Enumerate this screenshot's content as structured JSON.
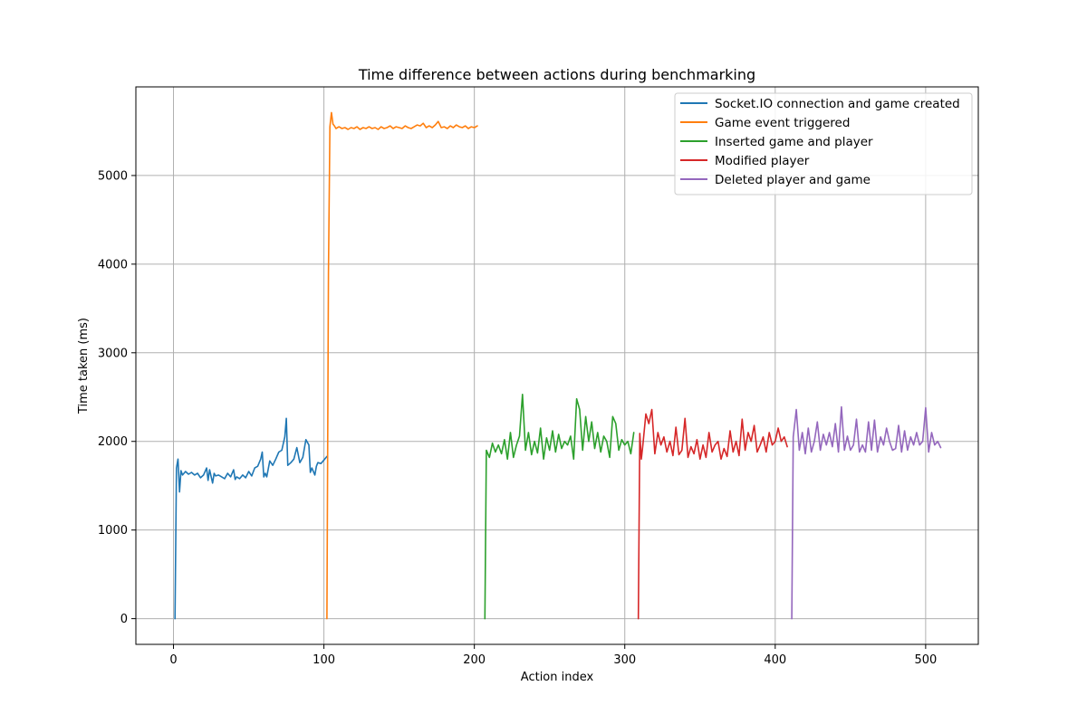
{
  "chart_data": {
    "type": "line",
    "title": "Time difference between actions during benchmarking",
    "xlabel": "Action index",
    "ylabel": "Time taken (ms)",
    "xlim": [
      -25,
      535
    ],
    "ylim": [
      -290,
      6000
    ],
    "xticks": [
      0,
      100,
      200,
      300,
      400,
      500
    ],
    "yticks": [
      0,
      1000,
      2000,
      3000,
      4000,
      5000
    ],
    "grid": true,
    "legend_position": "top-right",
    "series": [
      {
        "name": "Socket.IO connection and game created",
        "color": "#1f77b4",
        "x": [
          1,
          2,
          3,
          4,
          5,
          6,
          8,
          10,
          12,
          14,
          16,
          18,
          20,
          22,
          23,
          24,
          26,
          27,
          28,
          30,
          32,
          34,
          36,
          38,
          40,
          41,
          42,
          44,
          46,
          48,
          50,
          52,
          54,
          56,
          58,
          59,
          60,
          61,
          62,
          64,
          66,
          68,
          70,
          72,
          74,
          75,
          76,
          78,
          80,
          82,
          84,
          86,
          88,
          90,
          91,
          92,
          94,
          95,
          96,
          98,
          100,
          102
        ],
        "y": [
          0,
          1700,
          1800,
          1430,
          1670,
          1620,
          1660,
          1630,
          1650,
          1620,
          1640,
          1590,
          1620,
          1700,
          1560,
          1680,
          1530,
          1640,
          1610,
          1620,
          1600,
          1580,
          1640,
          1600,
          1680,
          1570,
          1600,
          1580,
          1620,
          1590,
          1660,
          1610,
          1700,
          1720,
          1800,
          1880,
          1600,
          1640,
          1600,
          1780,
          1730,
          1800,
          1880,
          1900,
          2050,
          2260,
          1730,
          1760,
          1800,
          1930,
          1760,
          1820,
          2020,
          1960,
          1650,
          1700,
          1620,
          1720,
          1760,
          1750,
          1790,
          1830
        ]
      },
      {
        "name": "Game event triggered",
        "color": "#ff7f0e",
        "x": [
          102,
          103,
          104,
          105,
          106,
          107,
          108,
          110,
          112,
          114,
          116,
          118,
          120,
          122,
          124,
          126,
          128,
          130,
          132,
          134,
          136,
          138,
          140,
          142,
          144,
          146,
          148,
          150,
          152,
          154,
          156,
          158,
          160,
          162,
          164,
          166,
          168,
          170,
          172,
          174,
          176,
          178,
          180,
          182,
          184,
          186,
          188,
          190,
          192,
          194,
          196,
          198,
          200,
          202
        ],
        "y": [
          0,
          3900,
          5550,
          5710,
          5580,
          5560,
          5530,
          5550,
          5530,
          5540,
          5520,
          5540,
          5530,
          5550,
          5520,
          5540,
          5530,
          5550,
          5530,
          5540,
          5520,
          5550,
          5530,
          5540,
          5560,
          5530,
          5550,
          5540,
          5530,
          5560,
          5540,
          5530,
          5550,
          5570,
          5560,
          5590,
          5540,
          5560,
          5540,
          5570,
          5610,
          5540,
          5550,
          5530,
          5560,
          5540,
          5570,
          5550,
          5540,
          5560,
          5530,
          5550,
          5540,
          5560
        ]
      },
      {
        "name": "Inserted game and player",
        "color": "#2ca02c",
        "x": [
          207,
          208,
          210,
          212,
          214,
          216,
          218,
          220,
          222,
          224,
          226,
          228,
          230,
          232,
          234,
          236,
          238,
          240,
          242,
          244,
          246,
          248,
          250,
          252,
          254,
          256,
          258,
          260,
          262,
          264,
          266,
          268,
          270,
          272,
          274,
          276,
          278,
          280,
          282,
          284,
          286,
          288,
          290,
          292,
          294,
          296,
          298,
          300,
          302,
          304,
          306
        ],
        "y": [
          0,
          1900,
          1820,
          1980,
          1880,
          1960,
          1860,
          2020,
          1800,
          2100,
          1820,
          1960,
          2060,
          2530,
          1900,
          2100,
          1850,
          2000,
          1870,
          2150,
          1800,
          2040,
          1900,
          2120,
          1880,
          2080,
          1920,
          2000,
          1960,
          2060,
          1800,
          2480,
          2360,
          1900,
          2280,
          2000,
          2220,
          1920,
          2100,
          1880,
          2060,
          2000,
          1820,
          2280,
          2200,
          1900,
          2020,
          1960,
          2000,
          1860,
          2100
        ]
      },
      {
        "name": "Modified player",
        "color": "#d62728",
        "x": [
          309,
          310,
          311,
          312,
          314,
          316,
          318,
          320,
          322,
          324,
          326,
          328,
          330,
          332,
          334,
          336,
          338,
          340,
          342,
          344,
          346,
          348,
          350,
          352,
          354,
          356,
          358,
          360,
          362,
          364,
          366,
          368,
          370,
          372,
          374,
          376,
          378,
          380,
          382,
          384,
          386,
          388,
          390,
          392,
          394,
          396,
          398,
          400,
          402,
          404,
          406,
          408
        ],
        "y": [
          0,
          2090,
          1800,
          1960,
          2310,
          2200,
          2360,
          1860,
          2100,
          1960,
          2050,
          1880,
          2000,
          1840,
          2160,
          1850,
          1900,
          2260,
          1820,
          1940,
          1860,
          2020,
          1800,
          1960,
          1820,
          2100,
          1880,
          1960,
          2000,
          1800,
          1920,
          1830,
          2120,
          1880,
          2000,
          1840,
          2250,
          1900,
          2100,
          2000,
          2180,
          1880,
          1960,
          2050,
          1880,
          2100,
          1960,
          2000,
          2150,
          2000,
          2050,
          1940
        ]
      },
      {
        "name": "Deleted player and game",
        "color": "#9467bd",
        "x": [
          411,
          412,
          414,
          416,
          418,
          420,
          422,
          424,
          426,
          428,
          430,
          432,
          434,
          436,
          438,
          440,
          442,
          444,
          446,
          448,
          450,
          452,
          454,
          456,
          458,
          460,
          462,
          464,
          466,
          468,
          470,
          472,
          474,
          476,
          478,
          480,
          482,
          484,
          486,
          488,
          490,
          492,
          494,
          496,
          498,
          500,
          502,
          504,
          506,
          508,
          510
        ],
        "y": [
          0,
          2050,
          2360,
          1900,
          2100,
          1860,
          2150,
          1880,
          2000,
          2220,
          1900,
          2080,
          1960,
          2100,
          1940,
          2200,
          1880,
          2390,
          1900,
          2060,
          1900,
          1960,
          2250,
          1880,
          1960,
          1880,
          2220,
          1900,
          2240,
          1880,
          2050,
          1960,
          2150,
          2000,
          1900,
          1920,
          2180,
          1880,
          2120,
          1900,
          2050,
          1960,
          2100,
          1960,
          2000,
          2380,
          1880,
          2100,
          1960,
          2000,
          1930
        ]
      }
    ]
  }
}
